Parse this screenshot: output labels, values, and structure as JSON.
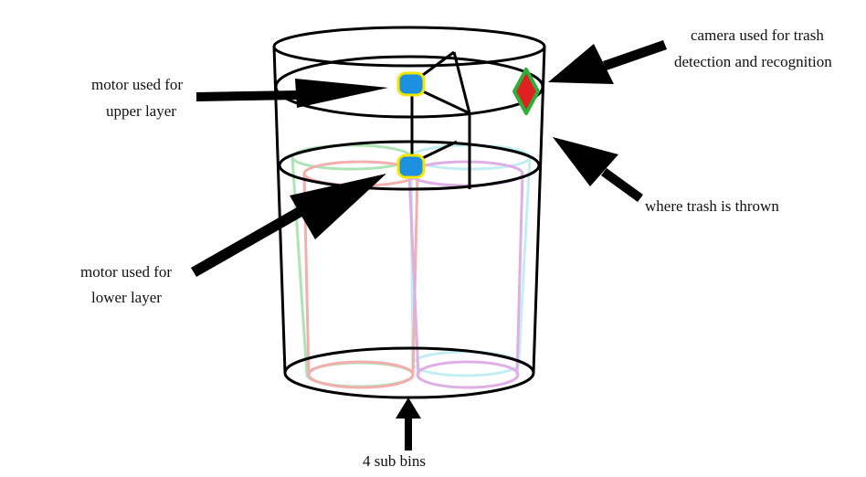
{
  "labels": {
    "upper_motor": [
      "motor used for",
      "upper layer"
    ],
    "lower_motor": [
      "motor used for",
      "lower layer"
    ],
    "camera": [
      "camera used for trash",
      "detection and recognition"
    ],
    "trash_inlet": "where trash is thrown",
    "sub_bins": "4 sub bins"
  },
  "icons": {
    "motor": "motor-icon",
    "camera": "camera-icon",
    "arrow": "arrow-icon"
  },
  "colors": {
    "outline": "#000000",
    "motor_fill": "#1e90e0",
    "motor_border": "#f2e600",
    "camera_fill": "#e02020",
    "camera_border": "#2fae3a",
    "bin_green": "#9fe0a8",
    "bin_red": "#f2a0a0",
    "bin_cyan": "#b8ecf2",
    "bin_purple": "#d9a0e0"
  }
}
